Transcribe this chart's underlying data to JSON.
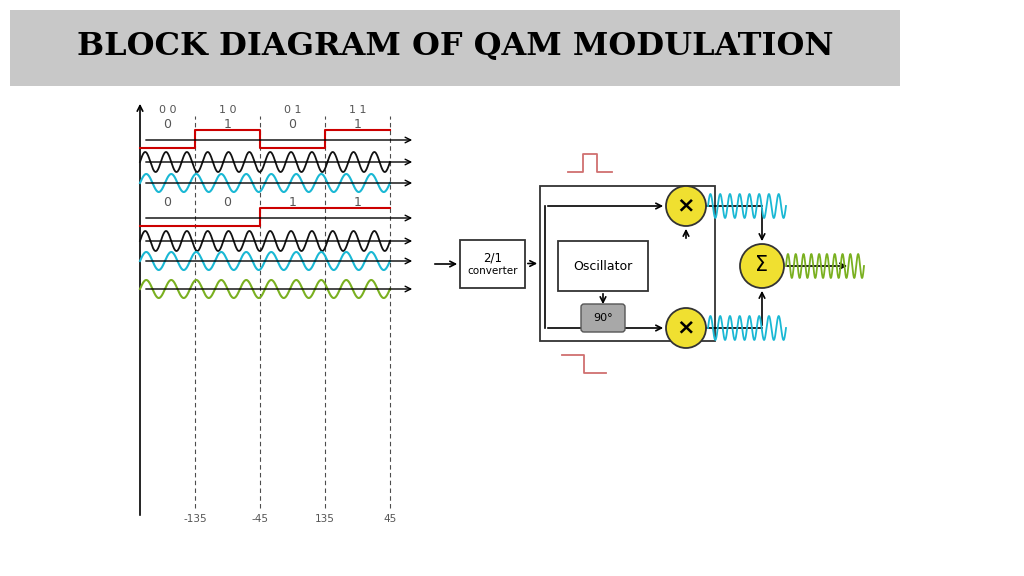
{
  "title": "BLOCK DIAGRAM OF QAM MODULATION",
  "title_bg": "#c8c8c8",
  "bg_color": "#ffffff",
  "right_bg": "#b5ada0",
  "wave_colors": {
    "red": "#cc0000",
    "black": "#111111",
    "cyan": "#1ab8d4",
    "green": "#7ab020"
  },
  "block_colors": {
    "converter_fill": "#ffffff",
    "converter_edge": "#333333",
    "oscillator_fill": "#ffffff",
    "oscillator_edge": "#333333",
    "multiplier_fill": "#f0e030",
    "multiplier_edge": "#333333",
    "phase_fill": "#a8a8a8",
    "phase_edge": "#555555",
    "sum_fill": "#f0e030",
    "sum_edge": "#333333"
  },
  "labels_top": [
    "0 0",
    "1 0",
    "0 1",
    "1 1"
  ],
  "labels_row1": [
    "0",
    "1",
    "0",
    "1"
  ],
  "labels_row2": [
    "0",
    "0",
    "1",
    "1"
  ],
  "x_tick_labels": [
    "-135",
    "-45",
    "135",
    "45"
  ]
}
